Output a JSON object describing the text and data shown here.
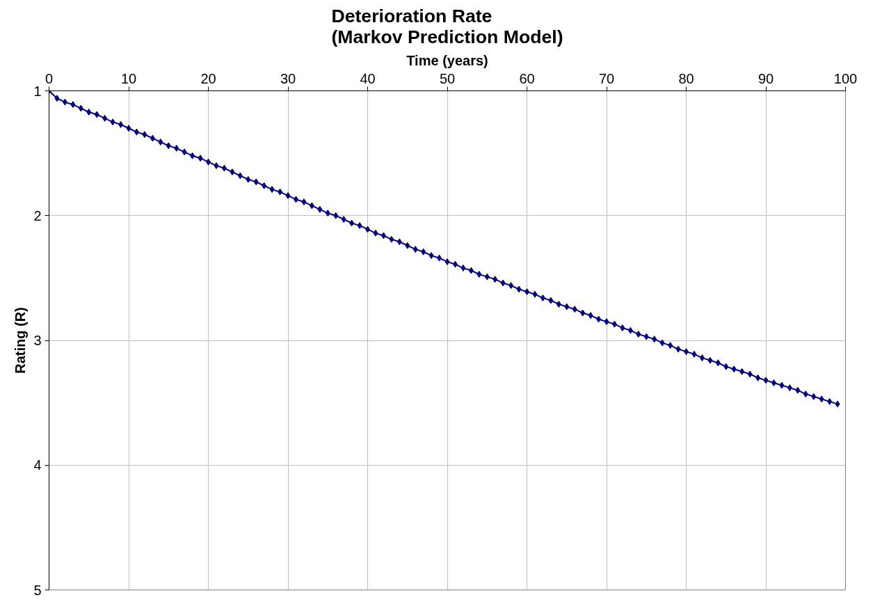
{
  "chart_data": {
    "type": "line",
    "title": "Deterioration Rate\n(Markov Prediction Model)",
    "xlabel": "Time (years)",
    "ylabel": "Rating (R)",
    "x": [
      0,
      1,
      2,
      3,
      4,
      5,
      6,
      7,
      8,
      9,
      10,
      11,
      12,
      13,
      14,
      15,
      16,
      17,
      18,
      19,
      20,
      21,
      22,
      23,
      24,
      25,
      26,
      27,
      28,
      29,
      30,
      31,
      32,
      33,
      34,
      35,
      36,
      37,
      38,
      39,
      40,
      41,
      42,
      43,
      44,
      45,
      46,
      47,
      48,
      49,
      50,
      51,
      52,
      53,
      54,
      55,
      56,
      57,
      58,
      59,
      60,
      61,
      62,
      63,
      64,
      65,
      66,
      67,
      68,
      69,
      70,
      71,
      72,
      73,
      74,
      75,
      76,
      77,
      78,
      79,
      80,
      81,
      82,
      83,
      84,
      85,
      86,
      87,
      88,
      89,
      90,
      91,
      92,
      93,
      94,
      95,
      96,
      97,
      98,
      99
    ],
    "series": [
      {
        "color": "#000080",
        "values": [
          1.0,
          1.06,
          1.09,
          1.11,
          1.14,
          1.17,
          1.19,
          1.22,
          1.25,
          1.27,
          1.3,
          1.33,
          1.35,
          1.38,
          1.41,
          1.44,
          1.46,
          1.49,
          1.52,
          1.54,
          1.57,
          1.6,
          1.62,
          1.65,
          1.68,
          1.71,
          1.73,
          1.76,
          1.79,
          1.81,
          1.84,
          1.87,
          1.89,
          1.92,
          1.95,
          1.98,
          2.0,
          2.03,
          2.06,
          2.08,
          2.11,
          2.14,
          2.16,
          2.19,
          2.21,
          2.24,
          2.27,
          2.29,
          2.32,
          2.34,
          2.37,
          2.39,
          2.42,
          2.44,
          2.47,
          2.49,
          2.51,
          2.54,
          2.56,
          2.59,
          2.61,
          2.63,
          2.66,
          2.68,
          2.71,
          2.73,
          2.75,
          2.78,
          2.8,
          2.83,
          2.85,
          2.87,
          2.9,
          2.92,
          2.95,
          2.97,
          2.99,
          3.02,
          3.04,
          3.07,
          3.09,
          3.11,
          3.14,
          3.16,
          3.18,
          3.21,
          3.23,
          3.25,
          3.27,
          3.3,
          3.32,
          3.34,
          3.36,
          3.38,
          3.4,
          3.43,
          3.45,
          3.47,
          3.49,
          3.51
        ]
      }
    ],
    "xlim": [
      0,
      100
    ],
    "xticks": [
      0,
      10,
      20,
      30,
      40,
      50,
      60,
      70,
      80,
      90,
      100
    ],
    "ylim": [
      5,
      1
    ],
    "yticks": [
      1,
      2,
      3,
      4,
      5
    ],
    "grid": true,
    "marker": "diamond",
    "line_style": "solid"
  }
}
